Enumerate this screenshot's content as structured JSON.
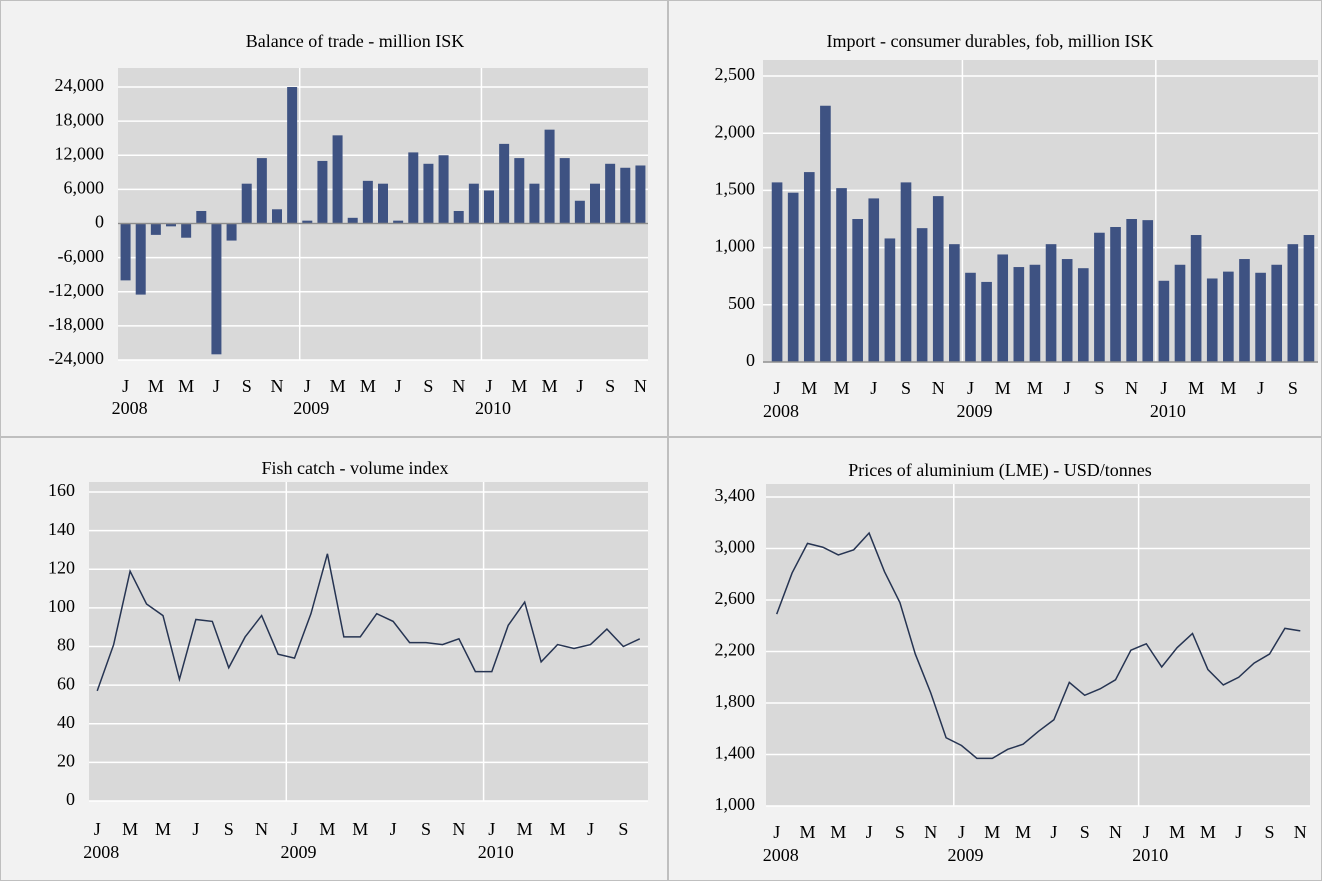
{
  "chart_data": [
    {
      "type": "bar",
      "title": "Balance of trade - million ISK",
      "color": "#3e5282",
      "categories": [
        "J",
        null,
        "M",
        null,
        "M",
        null,
        "J",
        null,
        "S",
        null,
        "N",
        null,
        "J",
        null,
        "M",
        null,
        "M",
        null,
        "J",
        null,
        "S",
        null,
        "N",
        null,
        "J",
        null,
        "M",
        null,
        "M",
        null,
        "J",
        null,
        "S",
        null,
        "N"
      ],
      "year_labels": [
        "2008",
        null,
        null,
        null,
        null,
        null,
        null,
        null,
        null,
        null,
        null,
        null,
        "2009",
        null,
        null,
        null,
        null,
        null,
        null,
        null,
        null,
        null,
        null,
        null,
        "2010",
        null,
        null,
        null,
        null,
        null,
        null,
        null,
        null,
        null,
        null
      ],
      "values": [
        -10000,
        -12500,
        -2000,
        -500,
        -2500,
        2200,
        -23000,
        -3000,
        7000,
        11500,
        2500,
        24000,
        500,
        11000,
        15500,
        1000,
        7500,
        7000,
        500,
        12500,
        10500,
        12000,
        2200,
        7000,
        5800,
        14000,
        11500,
        7000,
        16500,
        11500,
        4000,
        7000,
        10500,
        9800,
        10200
      ],
      "ylim": [
        -24000,
        24000
      ],
      "yticks": [
        {
          "value": -24000,
          "label": "-24,000"
        },
        {
          "value": -18000,
          "label": "-18,000"
        },
        {
          "value": -12000,
          "label": "-12,000"
        },
        {
          "value": -6000,
          "label": "-6,000"
        },
        0,
        {
          "value": 6000,
          "label": "6,000"
        },
        {
          "value": 12000,
          "label": "12,000"
        },
        {
          "value": 18000,
          "label": "18,000"
        },
        {
          "value": 24000,
          "label": "24,000"
        }
      ],
      "grid": true
    },
    {
      "type": "bar",
      "title": "Import - consumer durables, fob, million ISK",
      "color": "#3e5282",
      "categories": [
        "J",
        null,
        "M",
        null,
        "M",
        null,
        "J",
        null,
        "S",
        null,
        "N",
        null,
        "J",
        null,
        "M",
        null,
        "M",
        null,
        "J",
        null,
        "S",
        null,
        "N",
        null,
        "J",
        null,
        "M",
        null,
        "M",
        null,
        "J",
        null,
        "S",
        null
      ],
      "year_labels": [
        "2008",
        null,
        null,
        null,
        null,
        null,
        null,
        null,
        null,
        null,
        null,
        null,
        "2009",
        null,
        null,
        null,
        null,
        null,
        null,
        null,
        null,
        null,
        null,
        null,
        "2010",
        null,
        null,
        null,
        null,
        null,
        null,
        null,
        null,
        null
      ],
      "values": [
        1570,
        1480,
        1660,
        2240,
        1520,
        1250,
        1430,
        1080,
        1570,
        1170,
        1450,
        1030,
        780,
        700,
        940,
        830,
        850,
        1030,
        900,
        820,
        1130,
        1180,
        1250,
        1240,
        710,
        850,
        1110,
        730,
        790,
        900,
        780,
        850,
        1030,
        1110
      ],
      "ylim": [
        0,
        2500
      ],
      "yticks": [
        0,
        500,
        {
          "value": 1000,
          "label": "1,000"
        },
        {
          "value": 1500,
          "label": "1,500"
        },
        {
          "value": 2000,
          "label": "2,000"
        },
        {
          "value": 2500,
          "label": "2,500"
        }
      ],
      "grid": true
    },
    {
      "type": "line",
      "title": "Fish catch - volume index",
      "color": "#263452",
      "categories": [
        "J",
        null,
        "M",
        null,
        "M",
        null,
        "J",
        null,
        "S",
        null,
        "N",
        null,
        "J",
        null,
        "M",
        null,
        "M",
        null,
        "J",
        null,
        "S",
        null,
        "N",
        null,
        "J",
        null,
        "M",
        null,
        "M",
        null,
        "J",
        null,
        "S",
        null
      ],
      "year_labels": [
        "2008",
        null,
        null,
        null,
        null,
        null,
        null,
        null,
        null,
        null,
        null,
        null,
        "2009",
        null,
        null,
        null,
        null,
        null,
        null,
        null,
        null,
        null,
        null,
        null,
        "2010",
        null,
        null,
        null,
        null,
        null,
        null,
        null,
        null,
        null
      ],
      "values": [
        57,
        81,
        119,
        102,
        96,
        63,
        94,
        93,
        69,
        85,
        96,
        76,
        74,
        97,
        128,
        85,
        85,
        97,
        93,
        82,
        82,
        81,
        84,
        67,
        67,
        91,
        103,
        72,
        81,
        79,
        81,
        89,
        80,
        84
      ],
      "ylim": [
        0,
        160
      ],
      "yticks": [
        0,
        20,
        40,
        60,
        80,
        100,
        120,
        140,
        160
      ],
      "grid": true
    },
    {
      "type": "line",
      "title": "Prices of aluminium (LME) - USD/tonnes",
      "color": "#263452",
      "categories": [
        "J",
        null,
        "M",
        null,
        "M",
        null,
        "J",
        null,
        "S",
        null,
        "N",
        null,
        "J",
        null,
        "M",
        null,
        "M",
        null,
        "J",
        null,
        "S",
        null,
        "N",
        null,
        "J",
        null,
        "M",
        null,
        "M",
        null,
        "J",
        null,
        "S",
        null,
        "N"
      ],
      "year_labels": [
        "2008",
        null,
        null,
        null,
        null,
        null,
        null,
        null,
        null,
        null,
        null,
        null,
        "2009",
        null,
        null,
        null,
        null,
        null,
        null,
        null,
        null,
        null,
        null,
        null,
        "2010",
        null,
        null,
        null,
        null,
        null,
        null,
        null,
        null,
        null,
        null
      ],
      "values": [
        2490,
        2810,
        3040,
        3010,
        2950,
        2990,
        3120,
        2820,
        2580,
        2180,
        1880,
        1530,
        1470,
        1370,
        1370,
        1440,
        1480,
        1580,
        1670,
        1960,
        1860,
        1910,
        1980,
        2210,
        2260,
        2080,
        2230,
        2340,
        2060,
        1940,
        2000,
        2110,
        2180,
        2380,
        2360
      ],
      "ylim": [
        1000,
        3400
      ],
      "yticks": [
        {
          "value": 1000,
          "label": "1,000"
        },
        {
          "value": 1400,
          "label": "1,400"
        },
        {
          "value": 1800,
          "label": "1,800"
        },
        {
          "value": 2200,
          "label": "2,200"
        },
        {
          "value": 2600,
          "label": "2,600"
        },
        {
          "value": 3000,
          "label": "3,000"
        },
        {
          "value": 3400,
          "label": "3,400"
        }
      ],
      "grid": true
    }
  ]
}
